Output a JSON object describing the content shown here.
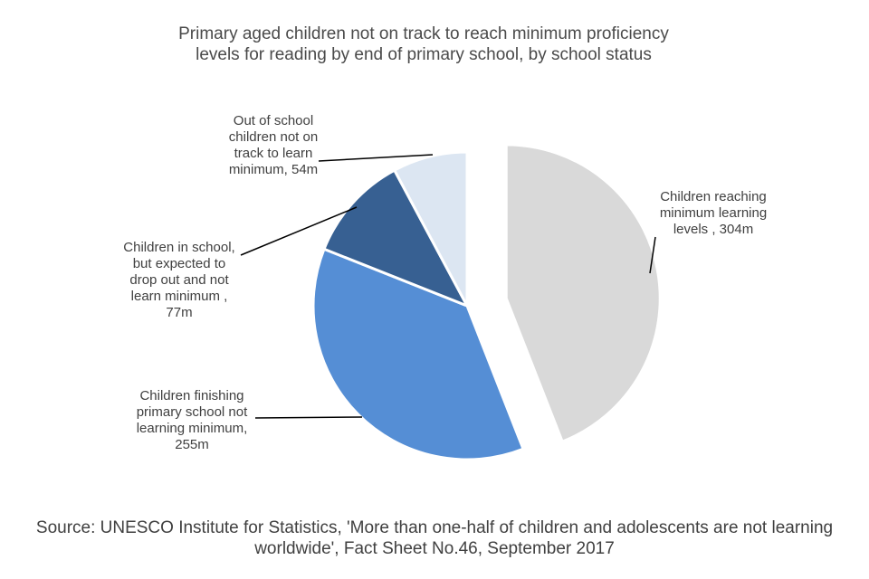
{
  "chart_data": {
    "type": "pie",
    "title": "Primary aged children not on track to reach minimum proficiency\nlevels for reading by end of primary school, by school status",
    "slices": [
      {
        "label": "Children reaching\nminimum learning\nlevels , 304m",
        "value": 304,
        "color": "#d9d9d9",
        "exploded": true
      },
      {
        "label": "Children finishing\nprimary school not\nlearning minimum,\n255m",
        "value": 255,
        "color": "#558ed5"
      },
      {
        "label": "Children in school,\nbut expected to\ndrop out and not\nlearn minimum ,\n77m",
        "value": 77,
        "color": "#376092"
      },
      {
        "label": "Out of school\nchildren not on\ntrack to  learn\nminimum, 54m",
        "value": 54,
        "color": "#dce6f2"
      }
    ],
    "legend": "none"
  },
  "source": "Source: UNESCO Institute for Statistics, 'More than one-half of children and adolescents are not learning\nworldwide', Fact Sheet No.46, September 2017"
}
